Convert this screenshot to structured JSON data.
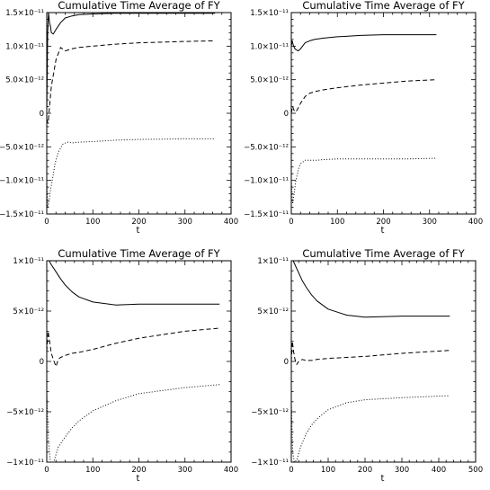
{
  "chart_data": [
    {
      "type": "line",
      "title": "Cumulative Time  Average of FY",
      "xlabel": "t",
      "ylabel": "",
      "xlim": [
        0,
        400
      ],
      "ylim": [
        -1.5e-11,
        1.5e-11
      ],
      "xticks": [
        0,
        100,
        200,
        300,
        400
      ],
      "xtick_labels": [
        "0",
        "100",
        "200",
        "300",
        "400"
      ],
      "yticks": [
        -1.5e-11,
        -1e-11,
        -5e-12,
        0,
        5e-12,
        1e-11,
        1.5e-11
      ],
      "ytick_labels": [
        "−1.5×10⁻¹¹",
        "−1.0×10⁻¹¹",
        "−5.0×10⁻¹²",
        "0",
        "5.0×10⁻¹²",
        "1.0×10⁻¹¹",
        "1.5×10⁻¹¹"
      ],
      "series": [
        {
          "style": "solid",
          "x": [
            0,
            2,
            4,
            6,
            8,
            10,
            14,
            20,
            30,
            40,
            55,
            70,
            100,
            150,
            200,
            300,
            365
          ],
          "y": [
            0,
            1.2e-11,
            1.5e-11,
            1.35e-11,
            1.3e-11,
            1.2e-11,
            1.18e-11,
            1.25e-11,
            1.35e-11,
            1.42e-11,
            1.45e-11,
            1.47e-11,
            1.48e-11,
            1.49e-11,
            1.49e-11,
            1.49e-11,
            1.49e-11
          ]
        },
        {
          "style": "dashed",
          "x": [
            0,
            3,
            6,
            10,
            15,
            20,
            30,
            40,
            55,
            70,
            100,
            150,
            200,
            300,
            365
          ],
          "y": [
            -1e-12,
            -1.5e-12,
            1e-12,
            4e-12,
            6e-12,
            8e-12,
            9.8e-12,
            9.3e-12,
            9.6e-12,
            9.8e-12,
            1e-11,
            1.03e-11,
            1.05e-11,
            1.07e-11,
            1.08e-11
          ]
        },
        {
          "style": "dotted",
          "x": [
            0,
            2,
            5,
            8,
            12,
            18,
            25,
            35,
            45,
            55,
            70,
            100,
            150,
            200,
            300,
            365
          ],
          "y": [
            -1e-11,
            -1.4e-11,
            -1.3e-11,
            -1.15e-11,
            -1e-11,
            -7.5e-12,
            -5.8e-12,
            -4.6e-12,
            -4.3e-12,
            -4.4e-12,
            -4.3e-12,
            -4.2e-12,
            -4e-12,
            -3.9e-12,
            -3.8e-12,
            -3.8e-12
          ]
        }
      ]
    },
    {
      "type": "line",
      "title": "Cumulative Time  Average of FY",
      "xlabel": "t",
      "ylabel": "",
      "xlim": [
        0,
        400
      ],
      "ylim": [
        -1.5e-11,
        1.5e-11
      ],
      "xticks": [
        0,
        100,
        200,
        300,
        400
      ],
      "xtick_labels": [
        "0",
        "100",
        "200",
        "300",
        "400"
      ],
      "yticks": [
        -1.5e-11,
        -1e-11,
        -5e-12,
        0,
        5e-12,
        1e-11,
        1.5e-11
      ],
      "ytick_labels": [
        "−1.5×10⁻¹¹",
        "−1.0×10⁻¹¹",
        "−5.0×10⁻¹²",
        "0",
        "5.0×10⁻¹²",
        "1.0×10⁻¹¹",
        "1.5×10⁻¹¹"
      ],
      "series": [
        {
          "style": "solid",
          "x": [
            0,
            2,
            4,
            7,
            10,
            15,
            20,
            30,
            40,
            50,
            70,
            100,
            150,
            200,
            250,
            315
          ],
          "y": [
            1e-11,
            1.08e-11,
            1.02e-11,
            9.7e-12,
            9.5e-12,
            9.3e-12,
            9.6e-12,
            1.05e-11,
            1.08e-11,
            1.1e-11,
            1.12e-11,
            1.14e-11,
            1.16e-11,
            1.17e-11,
            1.17e-11,
            1.17e-11
          ]
        },
        {
          "style": "dashed",
          "x": [
            0,
            3,
            6,
            10,
            15,
            20,
            30,
            40,
            55,
            70,
            100,
            150,
            200,
            250,
            315
          ],
          "y": [
            0,
            1e-12,
            4e-13,
            2e-13,
            8e-13,
            1.5e-12,
            2.5e-12,
            3e-12,
            3.3e-12,
            3.5e-12,
            3.8e-12,
            4.2e-12,
            4.5e-12,
            4.8e-12,
            5e-12
          ]
        },
        {
          "style": "dotted",
          "x": [
            0,
            3,
            6,
            10,
            15,
            20,
            30,
            40,
            55,
            70,
            100,
            150,
            200,
            250,
            315
          ],
          "y": [
            -1e-11,
            -1.35e-11,
            -1.2e-11,
            -1e-11,
            -8.5e-12,
            -7.5e-12,
            -7e-12,
            -7e-12,
            -7e-12,
            -6.9e-12,
            -6.8e-12,
            -6.8e-12,
            -6.8e-12,
            -6.8e-12,
            -6.7e-12
          ]
        }
      ]
    },
    {
      "type": "line",
      "title": "Cumulative Time  Average of FY",
      "xlabel": "t",
      "ylabel": "",
      "xlim": [
        0,
        400
      ],
      "ylim": [
        -1e-11,
        1e-11
      ],
      "xticks": [
        0,
        100,
        200,
        300,
        400
      ],
      "xtick_labels": [
        "0",
        "100",
        "200",
        "300",
        "400"
      ],
      "yticks": [
        -1e-11,
        -5e-12,
        0,
        5e-12,
        1e-11
      ],
      "ytick_labels": [
        "−1×10⁻¹¹",
        "−5×10⁻¹²",
        "0",
        "5×10⁻¹²",
        "1×10⁻¹¹"
      ],
      "series": [
        {
          "style": "solid",
          "x": [
            2,
            5,
            10,
            20,
            30,
            40,
            55,
            70,
            100,
            150,
            200,
            300,
            375
          ],
          "y": [
            1e-11,
            1e-11,
            9.6e-12,
            8.9e-12,
            8.2e-12,
            7.6e-12,
            6.9e-12,
            6.4e-12,
            5.9e-12,
            5.6e-12,
            5.7e-12,
            5.7e-12,
            5.7e-12
          ]
        },
        {
          "style": "dashed",
          "x": [
            0,
            3,
            6,
            10,
            15,
            20,
            25,
            30,
            40,
            55,
            70,
            100,
            150,
            200,
            300,
            375
          ],
          "y": [
            1e-12,
            3e-12,
            2e-12,
            8e-13,
            1e-13,
            -5e-13,
            2e-13,
            4e-13,
            6e-13,
            8e-13,
            9e-13,
            1.2e-12,
            1.8e-12,
            2.3e-12,
            3e-12,
            3.3e-12
          ]
        },
        {
          "style": "dotted",
          "x": [
            0,
            4,
            8,
            15,
            25,
            40,
            55,
            70,
            100,
            150,
            200,
            300,
            375
          ],
          "y": [
            -3e-12,
            -8e-12,
            -1e-11,
            -1e-11,
            -8.5e-12,
            -7.5e-12,
            -6.6e-12,
            -5.9e-12,
            -4.9e-12,
            -3.9e-12,
            -3.2e-12,
            -2.6e-12,
            -2.3e-12
          ]
        }
      ]
    },
    {
      "type": "line",
      "title": "Cumulative Time  Average of FY",
      "xlabel": "t",
      "ylabel": "",
      "xlim": [
        0,
        500
      ],
      "ylim": [
        -1e-11,
        1e-11
      ],
      "xticks": [
        0,
        100,
        200,
        300,
        400,
        500
      ],
      "xtick_labels": [
        "0",
        "100",
        "200",
        "300",
        "400",
        "500"
      ],
      "yticks": [
        -1e-11,
        -5e-12,
        0,
        5e-12,
        1e-11
      ],
      "ytick_labels": [
        "−1×10⁻¹¹",
        "−5×10⁻¹²",
        "0",
        "5×10⁻¹²",
        "1×10⁻¹¹"
      ],
      "series": [
        {
          "style": "solid",
          "x": [
            2,
            5,
            10,
            20,
            30,
            40,
            55,
            70,
            100,
            150,
            200,
            300,
            430
          ],
          "y": [
            1e-11,
            1e-11,
            9.6e-12,
            8.8e-12,
            8e-12,
            7.4e-12,
            6.6e-12,
            6e-12,
            5.2e-12,
            4.6e-12,
            4.4e-12,
            4.5e-12,
            4.5e-12
          ]
        },
        {
          "style": "dashed",
          "x": [
            0,
            3,
            6,
            10,
            15,
            20,
            30,
            40,
            55,
            70,
            100,
            150,
            200,
            300,
            430
          ],
          "y": [
            0,
            2e-12,
            1e-12,
            2e-13,
            -3e-13,
            0,
            2e-13,
            1e-13,
            1e-13,
            2e-13,
            3e-13,
            4e-13,
            5e-13,
            8e-13,
            1.1e-12
          ]
        },
        {
          "style": "dotted",
          "x": [
            0,
            4,
            8,
            15,
            25,
            40,
            55,
            70,
            100,
            150,
            200,
            300,
            430
          ],
          "y": [
            -4e-12,
            -9e-12,
            -1e-11,
            -9.8e-12,
            -8.5e-12,
            -7.2e-12,
            -6.3e-12,
            -5.7e-12,
            -4.8e-12,
            -4.1e-12,
            -3.8e-12,
            -3.6e-12,
            -3.4e-12
          ]
        }
      ]
    }
  ]
}
